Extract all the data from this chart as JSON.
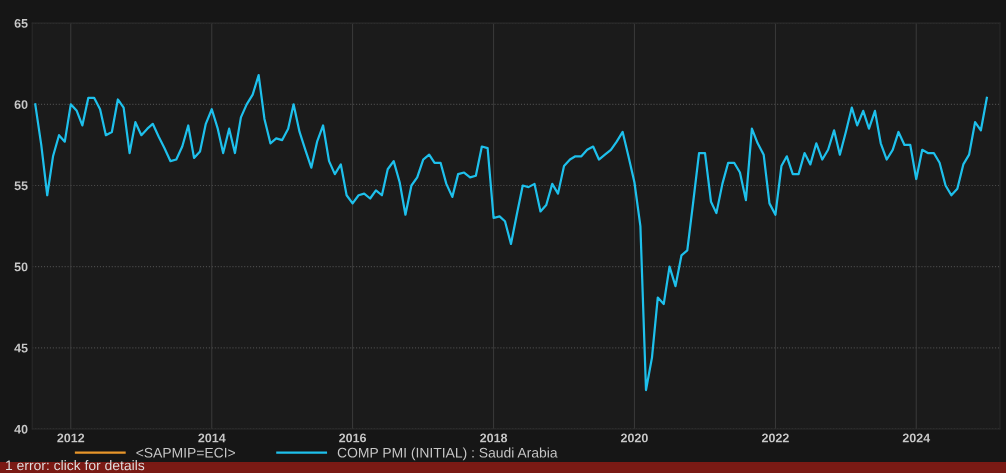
{
  "chart_data": {
    "type": "line",
    "x": [
      "2011-07",
      "2011-08",
      "2011-09",
      "2011-10",
      "2011-11",
      "2011-12",
      "2012-01",
      "2012-02",
      "2012-03",
      "2012-04",
      "2012-05",
      "2012-06",
      "2012-07",
      "2012-08",
      "2012-09",
      "2012-10",
      "2012-11",
      "2012-12",
      "2013-01",
      "2013-02",
      "2013-03",
      "2013-04",
      "2013-05",
      "2013-06",
      "2013-07",
      "2013-08",
      "2013-09",
      "2013-10",
      "2013-11",
      "2013-12",
      "2014-01",
      "2014-02",
      "2014-03",
      "2014-04",
      "2014-05",
      "2014-06",
      "2014-07",
      "2014-08",
      "2014-09",
      "2014-10",
      "2014-11",
      "2014-12",
      "2015-01",
      "2015-02",
      "2015-03",
      "2015-04",
      "2015-05",
      "2015-06",
      "2015-07",
      "2015-08",
      "2015-09",
      "2015-10",
      "2015-11",
      "2015-12",
      "2016-01",
      "2016-02",
      "2016-03",
      "2016-04",
      "2016-05",
      "2016-06",
      "2016-07",
      "2016-08",
      "2016-09",
      "2016-10",
      "2016-11",
      "2016-12",
      "2017-01",
      "2017-02",
      "2017-03",
      "2017-04",
      "2017-05",
      "2017-06",
      "2017-07",
      "2017-08",
      "2017-09",
      "2017-10",
      "2017-11",
      "2017-12",
      "2018-01",
      "2018-02",
      "2018-03",
      "2018-04",
      "2018-05",
      "2018-06",
      "2018-07",
      "2018-08",
      "2018-09",
      "2018-10",
      "2018-11",
      "2018-12",
      "2019-01",
      "2019-02",
      "2019-03",
      "2019-04",
      "2019-05",
      "2019-06",
      "2019-07",
      "2019-08",
      "2019-09",
      "2019-10",
      "2019-11",
      "2019-12",
      "2020-01",
      "2020-02",
      "2020-03",
      "2020-04",
      "2020-05",
      "2020-06",
      "2020-07",
      "2020-08",
      "2020-09",
      "2020-10",
      "2020-11",
      "2020-12",
      "2021-01",
      "2021-02",
      "2021-03",
      "2021-04",
      "2021-05",
      "2021-06",
      "2021-07",
      "2021-08",
      "2021-09",
      "2021-10",
      "2021-11",
      "2021-12",
      "2022-01",
      "2022-02",
      "2022-03",
      "2022-04",
      "2022-05",
      "2022-06",
      "2022-07",
      "2022-08",
      "2022-09",
      "2022-10",
      "2022-11",
      "2022-12",
      "2023-01",
      "2023-02",
      "2023-03",
      "2023-04",
      "2023-05",
      "2023-06",
      "2023-07",
      "2023-08",
      "2023-09",
      "2023-10",
      "2023-11",
      "2023-12",
      "2024-01",
      "2024-02",
      "2024-03",
      "2024-04",
      "2024-05",
      "2024-06",
      "2024-07",
      "2024-08",
      "2024-09",
      "2024-10",
      "2024-11",
      "2024-12",
      "2025-01"
    ],
    "series": [
      {
        "name": "<SAPMIP=ECI>",
        "color": "#e8962a",
        "values": [
          null,
          null,
          null,
          null,
          null,
          null,
          null,
          null,
          null,
          null,
          null,
          null,
          null,
          null,
          null,
          null,
          null,
          null,
          null,
          null,
          null,
          null,
          null,
          null,
          null,
          null,
          null,
          null,
          null,
          null,
          null,
          null,
          null,
          null,
          null,
          null,
          null,
          null,
          null,
          null,
          null,
          null,
          null,
          null,
          null,
          null,
          null,
          null,
          null,
          null,
          null,
          null,
          null,
          null,
          null,
          null,
          null,
          null,
          null,
          null,
          null,
          null,
          null,
          null,
          null,
          null,
          null,
          null,
          null,
          null,
          null,
          null,
          null,
          null,
          null,
          null,
          null,
          null,
          null,
          null,
          null,
          null,
          null,
          null,
          null,
          null,
          null,
          null,
          null,
          null,
          null,
          null,
          null,
          null,
          null,
          null,
          null,
          null,
          null,
          null,
          null,
          null,
          null,
          null,
          null,
          null,
          null,
          null,
          null,
          null,
          null,
          null,
          null,
          null,
          null,
          null,
          null,
          null,
          null,
          null,
          null,
          null,
          null,
          null,
          null,
          null,
          null,
          null,
          null,
          null,
          null,
          null,
          null,
          null,
          null,
          null,
          null,
          null,
          null,
          null,
          null,
          null,
          null,
          null,
          null,
          null,
          null,
          null,
          null,
          null,
          null,
          null,
          null,
          null,
          null,
          null,
          null,
          null,
          null,
          null,
          null,
          null,
          null
        ]
      },
      {
        "name": "COMP PMI (INITIAL) : Saudi Arabia",
        "color": "#1ec0ec",
        "values": [
          60.0,
          57.5,
          54.4,
          56.8,
          58.1,
          57.7,
          60.0,
          59.6,
          58.7,
          60.4,
          60.4,
          59.7,
          58.1,
          58.3,
          60.3,
          59.8,
          57.0,
          58.9,
          58.1,
          58.5,
          58.8,
          58.0,
          57.3,
          56.5,
          56.6,
          57.4,
          58.7,
          56.7,
          57.1,
          58.8,
          59.7,
          58.5,
          57.0,
          58.5,
          57.0,
          59.2,
          60.0,
          60.6,
          61.8,
          59.1,
          57.6,
          57.9,
          57.8,
          58.5,
          60.0,
          58.3,
          57.2,
          56.1,
          57.7,
          58.7,
          56.5,
          55.7,
          56.3,
          54.4,
          53.9,
          54.4,
          54.5,
          54.2,
          54.7,
          54.4,
          56.0,
          56.5,
          55.2,
          53.2,
          55.0,
          55.5,
          56.6,
          56.9,
          56.4,
          56.4,
          55.1,
          54.3,
          55.7,
          55.8,
          55.5,
          55.6,
          57.4,
          57.3,
          53.0,
          53.1,
          52.8,
          51.4,
          53.2,
          55.0,
          54.9,
          55.1,
          53.4,
          53.8,
          55.1,
          54.5,
          56.2,
          56.6,
          56.8,
          56.8,
          57.2,
          57.4,
          56.6,
          56.9,
          57.2,
          57.7,
          58.3,
          56.8,
          55.2,
          52.5,
          42.4,
          44.4,
          48.1,
          47.7,
          50.0,
          48.8,
          50.7,
          51.0,
          54.0,
          57.0,
          57.0,
          54.0,
          53.3,
          55.1,
          56.4,
          56.4,
          55.8,
          54.1,
          58.5,
          57.6,
          56.9,
          53.9,
          53.2,
          56.2,
          56.8,
          55.7,
          55.7,
          57.0,
          56.3,
          57.6,
          56.6,
          57.2,
          58.4,
          56.9,
          58.3,
          59.8,
          58.7,
          59.6,
          58.5,
          59.6,
          57.6,
          56.6,
          57.2,
          58.3,
          57.5,
          57.5,
          55.4,
          57.2,
          57.0,
          57.0,
          56.4,
          55.0,
          54.4,
          54.8,
          56.3,
          56.9,
          58.9,
          58.4,
          60.4
        ]
      }
    ],
    "xlim": [
      "2011-06-15",
      "2025-03-10"
    ],
    "xticks": [
      "2012",
      "2014",
      "2016",
      "2018",
      "2020",
      "2022",
      "2024"
    ],
    "ylim": [
      40,
      65
    ],
    "yticks": [
      40,
      45,
      50,
      55,
      60,
      65
    ],
    "grid": true,
    "legend": "bottom",
    "line_style": "solid",
    "marker": "none",
    "annotations": [
      "1 error: click for details"
    ]
  }
}
